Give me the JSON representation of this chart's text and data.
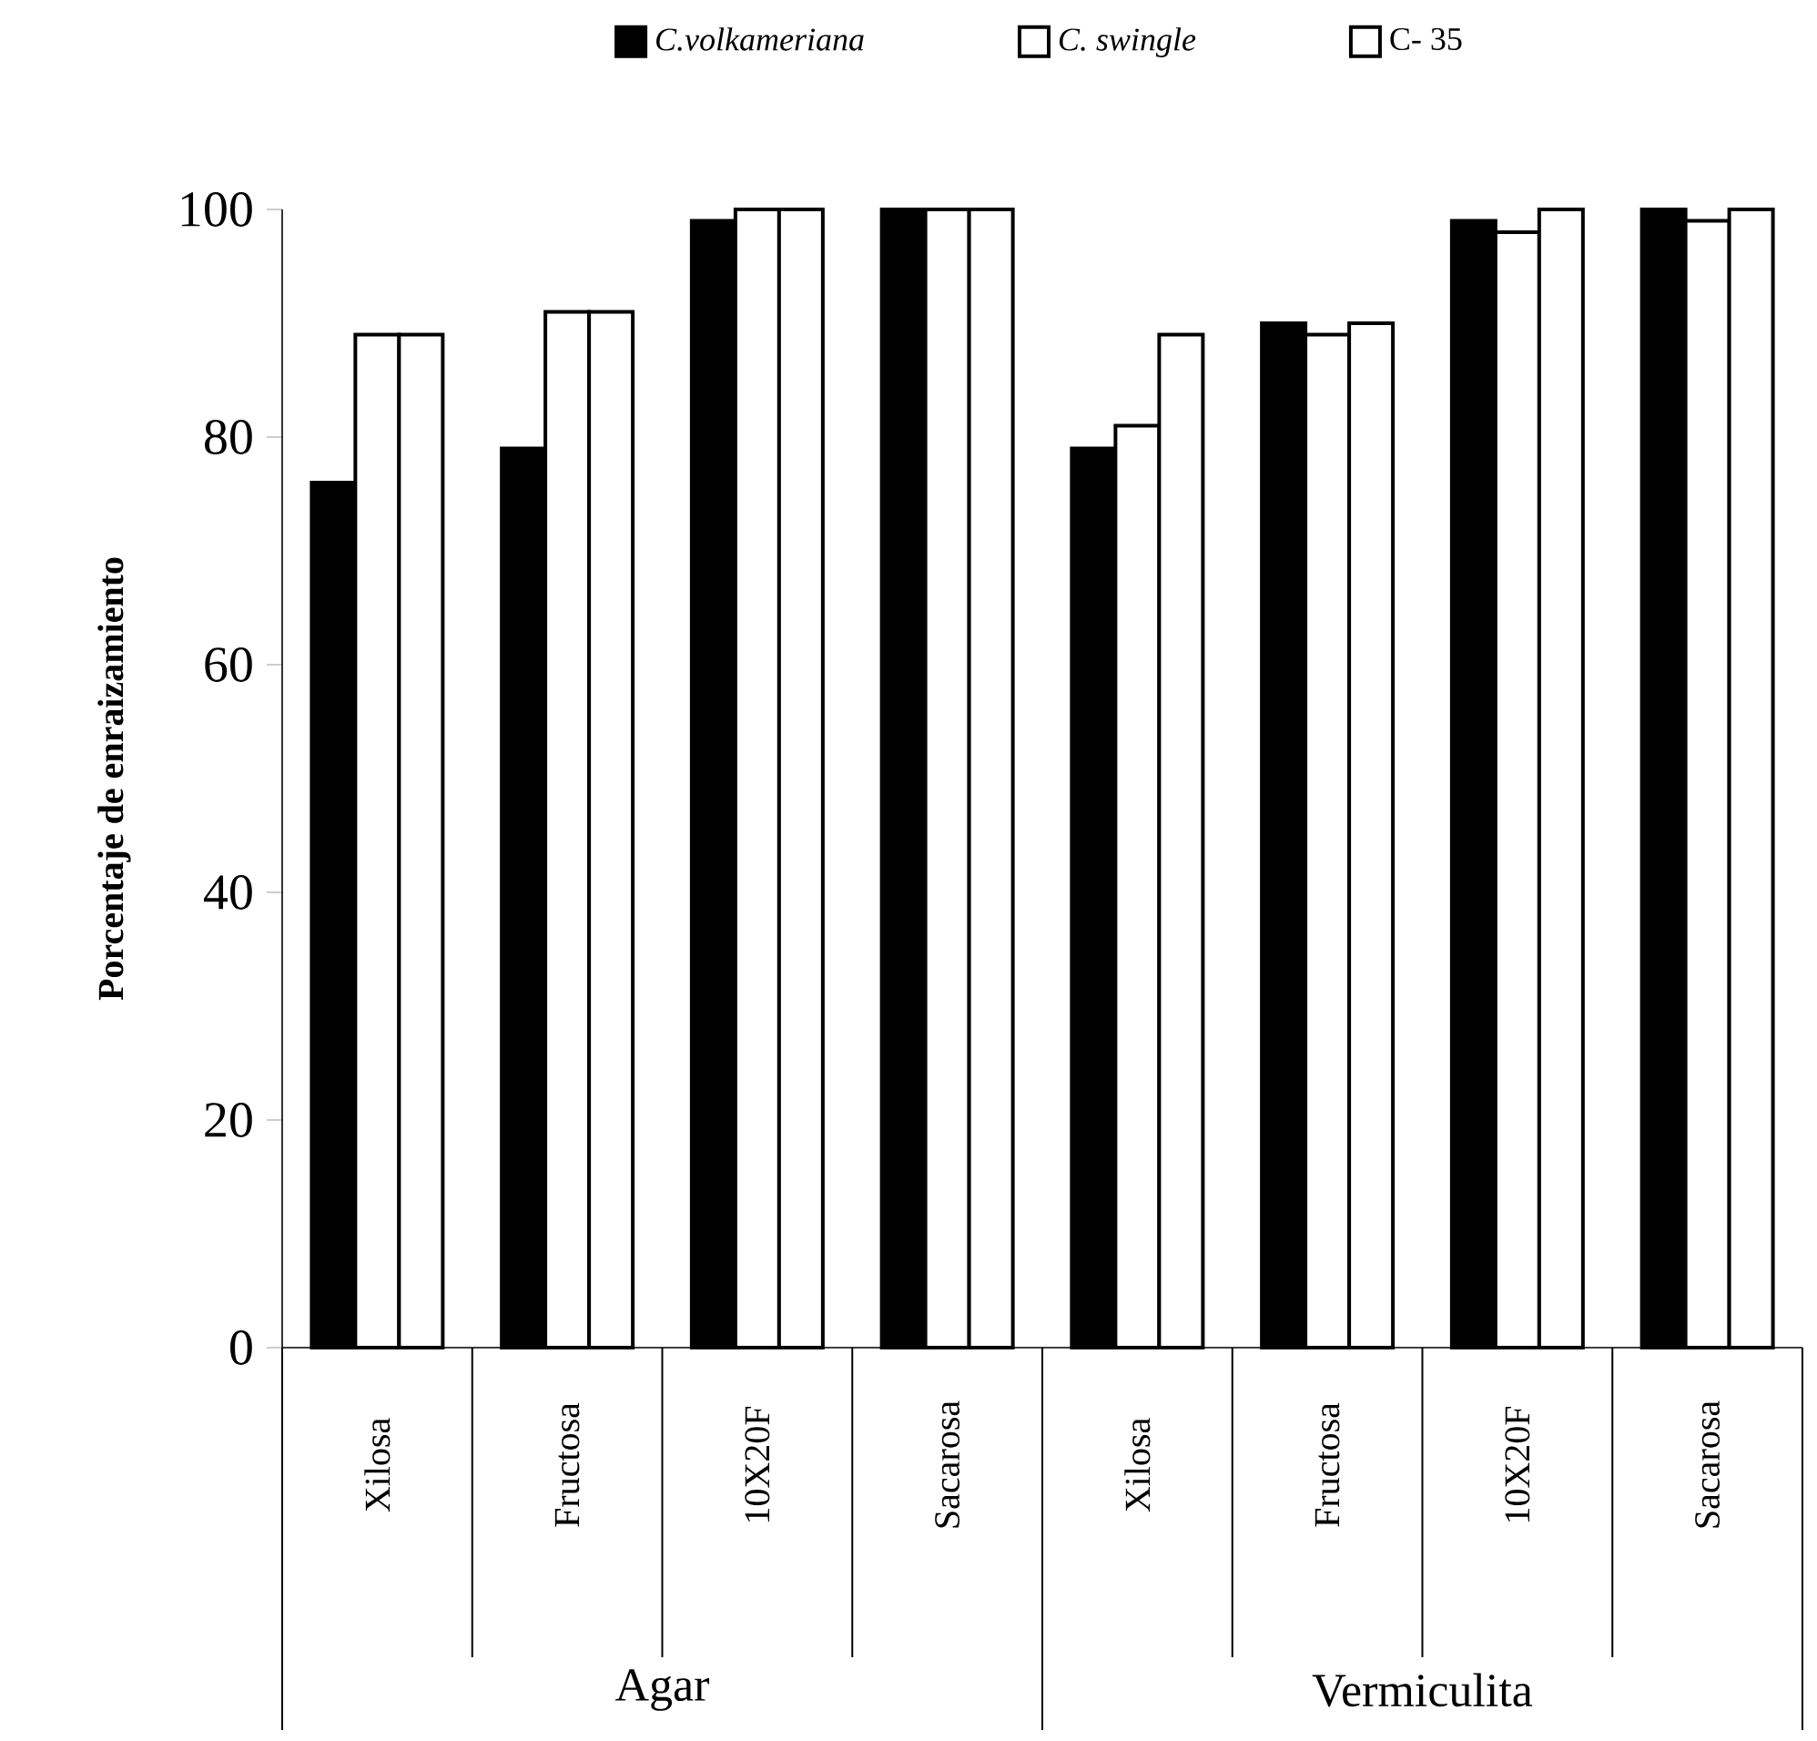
{
  "chart_data": {
    "type": "bar",
    "ylabel": "Porcentaje de enraizamiento",
    "categories": [
      "Xilosa",
      "Fructosa",
      "10X20F",
      "Sacarosa",
      "Xilosa",
      "Fructosa",
      "10X20F",
      "Sacarosa"
    ],
    "series": [
      {
        "name": "*C.volkameriana*",
        "color": "#000000",
        "values": [
          76,
          79,
          99,
          100,
          79,
          90,
          99,
          100
        ]
      },
      {
        "name": "*C. swingle*",
        "color": "#ffffff",
        "values": [
          89,
          91,
          100,
          100,
          81,
          89,
          98,
          99
        ]
      },
      {
        "name": "C- 35",
        "color": "#ffffff",
        "values": [
          89,
          91,
          100,
          100,
          89,
          90,
          100,
          100
        ]
      }
    ],
    "ylim": [
      0,
      100
    ],
    "yticks": [
      0,
      20,
      40,
      60,
      80,
      100
    ],
    "grid": false,
    "legend": "top",
    "annotations": [
      "Agar",
      "Vermiculita"
    ]
  }
}
